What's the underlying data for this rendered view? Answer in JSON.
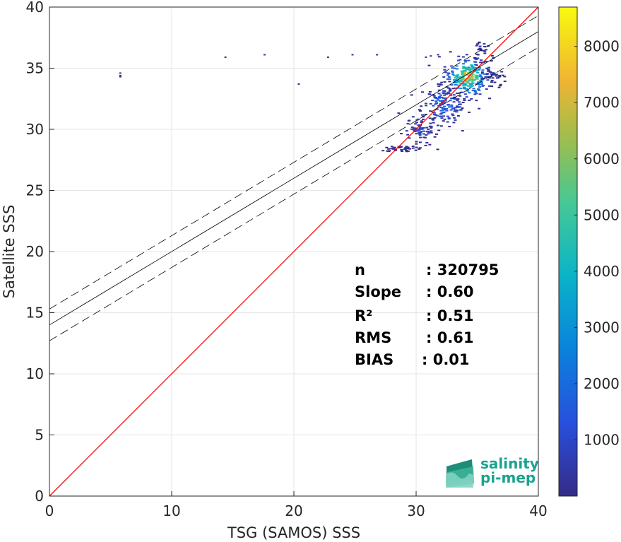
{
  "chart_data": {
    "type": "scatter",
    "subtype": "density-scatter",
    "xlabel": "TSG (SAMOS) SSS",
    "ylabel": "Satellite SSS",
    "xlim": [
      0,
      40
    ],
    "ylim": [
      0,
      40
    ],
    "xticks": [
      0,
      10,
      20,
      30,
      40
    ],
    "yticks": [
      0,
      5,
      10,
      15,
      20,
      25,
      30,
      35,
      40
    ],
    "grid": true,
    "colorbar": {
      "colormap": "parula",
      "range": [
        0,
        8700
      ],
      "ticks": [
        1000,
        2000,
        3000,
        4000,
        5000,
        6000,
        7000,
        8000
      ]
    },
    "reference_line": {
      "label": "1:1",
      "slope": 1,
      "intercept": 0,
      "color": "#ff0000"
    },
    "fit_line": {
      "slope": 0.6,
      "intercept": 14.0,
      "color": "#000000"
    },
    "fit_bounds": {
      "offset": 1.3,
      "style": "dashed"
    },
    "stats": [
      {
        "label": "n",
        "value": ": 320795"
      },
      {
        "label": "Slope",
        "value": ": 0.60"
      },
      {
        "label": "R²",
        "value": ": 0.51"
      },
      {
        "label": "RMS",
        "value": ": 0.61"
      },
      {
        "label": "BIAS",
        "value": ": 0.01"
      }
    ],
    "clusters": [
      {
        "x": 34.2,
        "y": 34.3,
        "sx": 0.9,
        "sy": 0.8,
        "weight": 8700,
        "count": 260
      },
      {
        "x": 32.2,
        "y": 32.0,
        "sx": 0.9,
        "sy": 0.8,
        "weight": 2500,
        "count": 160
      },
      {
        "x": 30.2,
        "y": 30.0,
        "sx": 0.8,
        "sy": 0.6,
        "weight": 1200,
        "count": 80
      },
      {
        "x": 29.0,
        "y": 28.4,
        "sx": 1.0,
        "sy": 0.15,
        "weight": 300,
        "count": 40
      },
      {
        "x": 36.2,
        "y": 34.4,
        "sx": 0.5,
        "sy": 0.3,
        "weight": 600,
        "count": 30
      },
      {
        "x": 35.4,
        "y": 36.6,
        "sx": 0.4,
        "sy": 0.4,
        "weight": 500,
        "count": 25
      }
    ],
    "outliers": [
      {
        "x": 5.8,
        "y": 34.6
      },
      {
        "x": 5.8,
        "y": 34.4
      },
      {
        "x": 5.8,
        "y": 34.3
      },
      {
        "x": 14.4,
        "y": 35.9
      },
      {
        "x": 17.6,
        "y": 36.1
      },
      {
        "x": 20.4,
        "y": 33.7
      },
      {
        "x": 22.8,
        "y": 35.9
      },
      {
        "x": 24.8,
        "y": 36.1
      },
      {
        "x": 26.8,
        "y": 36.1
      },
      {
        "x": 30.8,
        "y": 35.9
      },
      {
        "x": 31.2,
        "y": 36.0
      },
      {
        "x": 31.8,
        "y": 36.1
      }
    ]
  },
  "logo": {
    "line1": "salinity",
    "line2": "pi-mep"
  },
  "colors": {
    "reference": "#ff0000",
    "fit": "#000000",
    "grid": "#e6e6e6"
  }
}
